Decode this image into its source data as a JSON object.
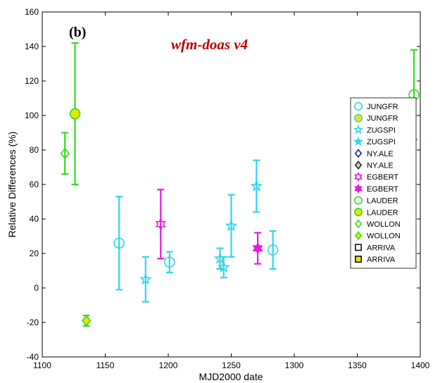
{
  "chart_data": {
    "type": "scatter",
    "panel_label": "(b)",
    "subtitle": "wfm-doas v4",
    "xlabel": "MJD2000 date",
    "ylabel": "Relative Differences (%)",
    "xlim": [
      1100,
      1400
    ],
    "ylim": [
      -40,
      160
    ],
    "xticks": [
      1100,
      1150,
      1200,
      1250,
      1300,
      1350,
      1400
    ],
    "yticks": [
      -40,
      -20,
      0,
      20,
      40,
      60,
      80,
      100,
      120,
      140,
      160
    ],
    "grid": false,
    "legend_position": "right",
    "series": [
      {
        "name": "JUNGFR",
        "marker": "circle",
        "filled": false,
        "color": "#33d6e6",
        "points": [
          {
            "x": 1161,
            "y": 26,
            "err": 27
          },
          {
            "x": 1201,
            "y": 15,
            "err": 6
          },
          {
            "x": 1283,
            "y": 22,
            "err": 11
          }
        ]
      },
      {
        "name": "JUNGFR",
        "marker": "circle",
        "filled": true,
        "color": "#33d6e6",
        "points": []
      },
      {
        "name": "ZUGSPI",
        "marker": "star",
        "filled": false,
        "color": "#33d6e6",
        "points": [
          {
            "x": 1182,
            "y": 5,
            "err": 13
          },
          {
            "x": 1241,
            "y": 17,
            "err": 6
          },
          {
            "x": 1244,
            "y": 12,
            "err": 6
          },
          {
            "x": 1250,
            "y": 36,
            "err": 18
          },
          {
            "x": 1270,
            "y": 59,
            "err": 15
          }
        ]
      },
      {
        "name": "ZUGSPI",
        "marker": "star",
        "filled": true,
        "color": "#33d6e6",
        "points": []
      },
      {
        "name": "NY.ALE",
        "marker": "diamond",
        "filled": false,
        "color": "#1a1ab3",
        "points": []
      },
      {
        "name": "NY.ALE",
        "marker": "diamond",
        "filled": true,
        "color": "#1a1ab3",
        "points": []
      },
      {
        "name": "EGBERT",
        "marker": "hexagram",
        "filled": false,
        "color": "#e61ae6",
        "points": [
          {
            "x": 1194,
            "y": 37,
            "err": 20
          }
        ]
      },
      {
        "name": "EGBERT",
        "marker": "hexagram",
        "filled": true,
        "color": "#e61ae6",
        "points": [
          {
            "x": 1271,
            "y": 23,
            "err": 9
          }
        ]
      },
      {
        "name": "LAUDER",
        "marker": "circle",
        "filled": false,
        "color": "#33dd22",
        "points": [
          {
            "x": 1395,
            "y": 112,
            "err": 26
          }
        ]
      },
      {
        "name": "LAUDER",
        "marker": "circle",
        "filled": true,
        "color": "#33dd22",
        "points": [
          {
            "x": 1126,
            "y": 101,
            "err": 41
          }
        ]
      },
      {
        "name": "WOLLON",
        "marker": "diamond",
        "filled": false,
        "color": "#33dd22",
        "points": [
          {
            "x": 1118,
            "y": 78,
            "err": 12
          }
        ]
      },
      {
        "name": "WOLLON",
        "marker": "diamond",
        "filled": true,
        "color": "#33dd22",
        "points": [
          {
            "x": 1135,
            "y": -19,
            "err": 3
          }
        ]
      },
      {
        "name": "ARRIVA",
        "marker": "square",
        "filled": false,
        "color": "#111111",
        "points": []
      },
      {
        "name": "ARRIVA",
        "marker": "square",
        "filled": true,
        "color": "#111111",
        "points": []
      }
    ]
  }
}
